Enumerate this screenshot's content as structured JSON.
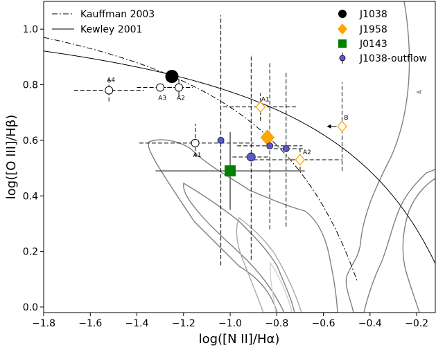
{
  "chart_data": {
    "type": "scatter",
    "xlabel": "log([N II]/Hα)",
    "ylabel": "log([O III]/Hβ)",
    "xlim": [
      -1.8,
      -0.12
    ],
    "ylim": [
      -0.02,
      1.1
    ],
    "xticks": [
      -1.8,
      -1.6,
      -1.4,
      -1.2,
      -1.0,
      -0.8,
      -0.6,
      -0.4,
      -0.2
    ],
    "xtick_labels": [
      "−1.8",
      "−1.6",
      "−1.4",
      "−1.2",
      "−1.0",
      "−0.8",
      "−0.6",
      "−0.4",
      "−0.2"
    ],
    "yticks": [
      0.0,
      0.2,
      0.4,
      0.6,
      0.8,
      1.0
    ],
    "ytick_labels": [
      "0.0",
      "0.2",
      "0.4",
      "0.6",
      "0.8",
      "1.0"
    ],
    "grid": false,
    "legend_left": [
      {
        "label": "Kauffman 2003",
        "style": "dashdot"
      },
      {
        "label": "Kewley 2001",
        "style": "solid"
      }
    ],
    "legend_right": [
      {
        "label": "J1038",
        "marker": "circle",
        "color": "#000000"
      },
      {
        "label": "J1958",
        "marker": "diamond",
        "color": "#ffa500"
      },
      {
        "label": "J0143",
        "marker": "square",
        "color": "#008000"
      },
      {
        "label": "J1038-outflow",
        "marker": "circle-small",
        "color": "#5a5acd"
      }
    ],
    "series": [
      {
        "name": "J1038",
        "marker": "circle",
        "color": "#000000",
        "points": [
          {
            "x": -1.25,
            "y": 0.83,
            "filled": true,
            "size": "large",
            "label": ""
          },
          {
            "x": -1.52,
            "y": 0.78,
            "filled": false,
            "xerr": [
              0.15,
              0.15
            ],
            "yerr": [
              0.04,
              0.04
            ],
            "label": "A4"
          },
          {
            "x": -1.3,
            "y": 0.79,
            "filled": false,
            "xerr": [
              0.1,
              0.05
            ],
            "yerr": [
              0.0,
              0.0
            ],
            "label": "A3"
          },
          {
            "x": -1.22,
            "y": 0.79,
            "filled": false,
            "xerr": [
              0.05,
              0.06
            ],
            "yerr": [
              0.03,
              0.03
            ],
            "label": "A2"
          },
          {
            "x": -1.15,
            "y": 0.59,
            "filled": false,
            "xerr": [
              0.24,
              0.25
            ],
            "yerr": [
              0.05,
              0.07
            ],
            "label": "A1"
          }
        ]
      },
      {
        "name": "J1958",
        "marker": "diamond",
        "color": "#ffa500",
        "points": [
          {
            "x": -0.84,
            "y": 0.61,
            "filled": true,
            "size": "large",
            "label": ""
          },
          {
            "x": -0.87,
            "y": 0.72,
            "filled": false,
            "xerr": [
              0.16,
              0.16
            ],
            "yerr": [
              0.05,
              0.05
            ],
            "label": "A1"
          },
          {
            "x": -0.7,
            "y": 0.53,
            "filled": false,
            "xerr": [
              0.2,
              0.18
            ],
            "yerr": [
              0.04,
              0.04
            ],
            "label": "A2"
          },
          {
            "x": -0.52,
            "y": 0.65,
            "filled": false,
            "xerr": [
              0.0,
              0.0
            ],
            "yerr": [
              0.16,
              0.16
            ],
            "label": "B",
            "upper_limit_x": true
          }
        ]
      },
      {
        "name": "J0143",
        "marker": "square",
        "color": "#008000",
        "points": [
          {
            "x": -1.0,
            "y": 0.49,
            "filled": true,
            "size": "large",
            "xerr": [
              0.32,
              0.32
            ],
            "yerr": [
              0.14,
              0.14
            ],
            "label": ""
          }
        ]
      },
      {
        "name": "J1038-outflow",
        "marker": "circle-small",
        "color": "#5a5acd",
        "points": [
          {
            "x": -1.04,
            "y": 0.6,
            "xerr": [
              0.0,
              0.0
            ],
            "yerr": [
              0.45,
              0.45
            ],
            "label": ""
          },
          {
            "x": -0.91,
            "y": 0.54,
            "xerr": [
              0.08,
              0.08
            ],
            "yerr": [
              0.37,
              0.37
            ],
            "label": ""
          },
          {
            "x": -0.83,
            "y": 0.58,
            "xerr": [
              0.14,
              0.14
            ],
            "yerr": [
              0.3,
              0.3
            ],
            "label": ""
          },
          {
            "x": -0.76,
            "y": 0.57,
            "xerr": [
              0.08,
              0.08
            ],
            "yerr": [
              0.28,
              0.28
            ],
            "label": ""
          }
        ]
      }
    ],
    "curves": [
      {
        "name": "Kauffman 2003",
        "style": "dashdot",
        "formula": "0.61/(x-0.05)+1.3"
      },
      {
        "name": "Kewley 2001",
        "style": "solid",
        "formula": "0.61/(x-0.47)+1.19"
      }
    ],
    "contours": {
      "color_outer": "#808080",
      "color_inner": "#c8c8c8",
      "note": "density contours of SDSS galaxies"
    }
  }
}
